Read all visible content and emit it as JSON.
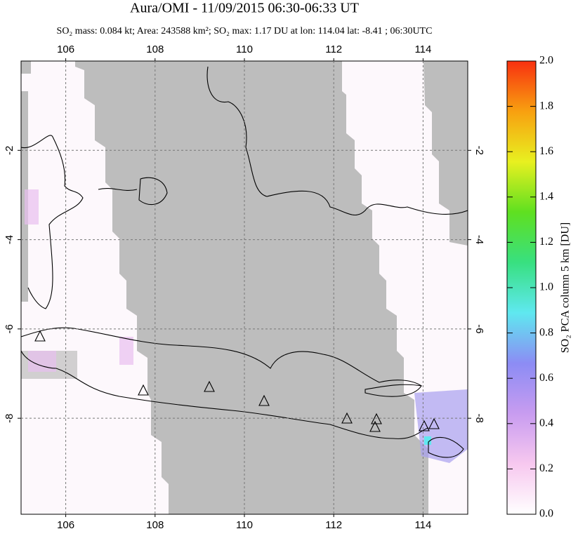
{
  "chart_data": {
    "type": "map",
    "title": "Aura/OMI - 11/09/2015 06:30-06:33 UT",
    "subtitle": "SO₂ mass: 0.084 kt; Area: 243588 km²; SO₂ max: 1.17 DU at lon: 114.04 lat: -8.41 ; 06:30UTC",
    "xlim": [
      105,
      115
    ],
    "ylim": [
      -10.15,
      0
    ],
    "xticks": [
      106,
      108,
      110,
      112,
      114
    ],
    "yticks": [
      -2,
      -4,
      -6,
      -8
    ],
    "grid": true,
    "colorbar": {
      "label": "SO₂ PCA column 5 km [DU]",
      "lim": [
        0,
        2
      ],
      "ticks": [
        {
          "value": 0,
          "label": "0.0"
        },
        {
          "value": 0.2,
          "label": "0.2"
        },
        {
          "value": 0.4,
          "label": "0.4"
        },
        {
          "value": 0.6,
          "label": "0.6"
        },
        {
          "value": 0.8,
          "label": "0.8"
        },
        {
          "value": 1.0,
          "label": "1.0"
        },
        {
          "value": 1.2,
          "label": "1.2"
        },
        {
          "value": 1.4,
          "label": "1.4"
        },
        {
          "value": 1.6,
          "label": "1.6"
        },
        {
          "value": 1.8,
          "label": "1.8"
        },
        {
          "value": 2.0,
          "label": "2.0"
        }
      ],
      "colors": [
        "#ffffff",
        "#f7c8ef",
        "#c89cf0",
        "#8c8cf4",
        "#5fe8f0",
        "#38e080",
        "#5fe020",
        "#e8f020",
        "#f8a010",
        "#f83010"
      ]
    }
  }
}
